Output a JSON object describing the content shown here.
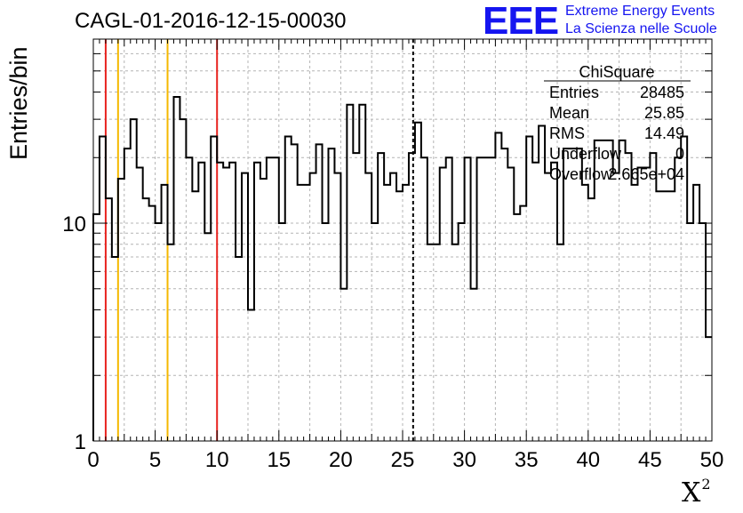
{
  "header": {
    "title": "CAGL-01-2016-12-15-00030",
    "logo": "EEE",
    "logo_line1": "Extreme Energy Events",
    "logo_line2": "La Scienza nelle Scuole"
  },
  "stats": {
    "title": "ChiSquare",
    "rows": [
      {
        "label": "Entries",
        "value": "28485"
      },
      {
        "label": "Mean",
        "value": "25.85"
      },
      {
        "label": "RMS",
        "value": "14.49"
      },
      {
        "label": "Underflow",
        "value": "0"
      },
      {
        "label": "Overflow",
        "value": "2.665e+04"
      }
    ]
  },
  "colors": {
    "histogram": "#000000",
    "red_line": "#e8231f",
    "yellow_line": "#f5b800",
    "grid": "#b4b4b4",
    "logo": "#1515f0"
  },
  "chart_data": {
    "type": "bar",
    "histogram_style": "step",
    "title": "CAGL-01-2016-12-15-00030",
    "xlabel": "X",
    "xlabel_superscript": "2",
    "ylabel": "Entries/bin",
    "xlim": [
      0,
      50
    ],
    "ylim": [
      1,
      70
    ],
    "yscale": "log",
    "grid": true,
    "x_ticks": [
      "0",
      "5",
      "10",
      "15",
      "20",
      "25",
      "30",
      "35",
      "40",
      "45",
      "50"
    ],
    "y_ticks": [
      "1",
      "10"
    ],
    "bin_width": 0.5,
    "values": [
      11,
      25,
      13,
      7,
      16,
      22,
      30,
      18,
      13,
      12,
      10,
      15,
      8,
      38,
      30,
      20,
      14,
      19,
      9,
      25,
      19,
      18,
      19,
      7,
      17,
      4,
      19,
      16,
      20,
      20,
      10,
      25,
      23,
      15,
      15,
      17,
      23,
      10,
      22,
      17,
      5,
      35,
      21,
      35,
      17,
      10,
      21,
      15,
      17,
      14,
      15,
      21,
      29,
      20,
      8,
      8,
      18,
      20,
      8,
      10,
      20,
      5,
      20,
      20,
      20,
      26,
      22,
      18,
      11,
      12,
      25,
      19,
      28,
      17,
      19,
      8,
      22,
      22,
      22,
      15,
      13,
      24,
      24,
      24,
      17,
      24,
      21,
      15,
      18,
      18,
      21,
      14,
      14,
      14,
      20,
      25,
      10,
      15,
      10,
      3
    ],
    "vertical_lines": [
      {
        "x": 1,
        "color": "red",
        "style": "solid"
      },
      {
        "x": 2,
        "color": "yellow",
        "style": "solid"
      },
      {
        "x": 6,
        "color": "yellow",
        "style": "solid"
      },
      {
        "x": 10,
        "color": "red",
        "style": "solid"
      },
      {
        "x": 25.85,
        "color": "black",
        "style": "dashed"
      }
    ]
  }
}
